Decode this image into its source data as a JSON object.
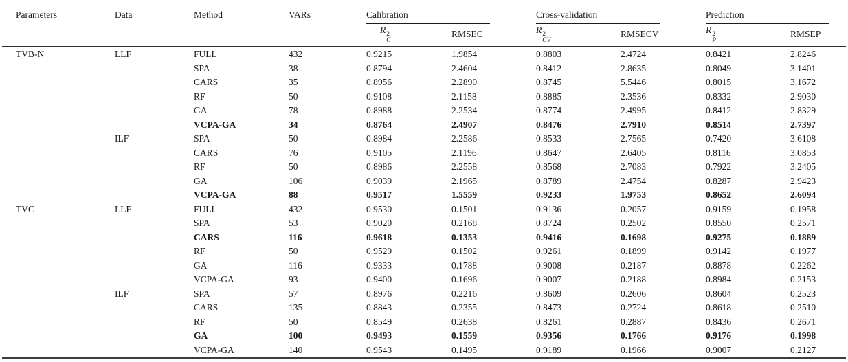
{
  "header": {
    "parameters": "Parameters",
    "data": "Data",
    "method": "Method",
    "vars": "VARs",
    "groups": [
      {
        "label": "Calibration",
        "r2_base": "R",
        "r2_sup": "2",
        "r2_sub": "C",
        "rmse": "RMSEC"
      },
      {
        "label": "Cross-validation",
        "r2_base": "R",
        "r2_sup": "2",
        "r2_sub": "CV",
        "rmse": "RMSECV"
      },
      {
        "label": "Prediction",
        "r2_base": "R",
        "r2_sup": "2",
        "r2_sub": "P",
        "rmse": "RMSEP"
      }
    ]
  },
  "rows": [
    {
      "parameters": "TVB-N",
      "data": "LLF",
      "method": "FULL",
      "vars": "432",
      "r2c": "0.9215",
      "rmsec": "1.9854",
      "r2cv": "0.8803",
      "rmsecv": "2.4724",
      "r2p": "0.8421",
      "rmsep": "2.8246",
      "bold": false
    },
    {
      "parameters": "",
      "data": "",
      "method": "SPA",
      "vars": "38",
      "r2c": "0.8794",
      "rmsec": "2.4604",
      "r2cv": "0.8412",
      "rmsecv": "2.8635",
      "r2p": "0.8049",
      "rmsep": "3.1401",
      "bold": false
    },
    {
      "parameters": "",
      "data": "",
      "method": "CARS",
      "vars": "35",
      "r2c": "0.8956",
      "rmsec": "2.2890",
      "r2cv": "0.8745",
      "rmsecv": "5.5446",
      "r2p": "0.8015",
      "rmsep": "3.1672",
      "bold": false
    },
    {
      "parameters": "",
      "data": "",
      "method": "RF",
      "vars": "50",
      "r2c": "0.9108",
      "rmsec": "2.1158",
      "r2cv": "0.8885",
      "rmsecv": "2.3536",
      "r2p": "0.8332",
      "rmsep": "2.9030",
      "bold": false
    },
    {
      "parameters": "",
      "data": "",
      "method": "GA",
      "vars": "78",
      "r2c": "0.8988",
      "rmsec": "2.2534",
      "r2cv": "0.8774",
      "rmsecv": "2.4995",
      "r2p": "0.8412",
      "rmsep": "2.8329",
      "bold": false
    },
    {
      "parameters": "",
      "data": "",
      "method": "VCPA-GA",
      "vars": "34",
      "r2c": "0.8764",
      "rmsec": "2.4907",
      "r2cv": "0.8476",
      "rmsecv": "2.7910",
      "r2p": "0.8514",
      "rmsep": "2.7397",
      "bold": true
    },
    {
      "parameters": "",
      "data": "ILF",
      "method": "SPA",
      "vars": "50",
      "r2c": "0.8984",
      "rmsec": "2.2586",
      "r2cv": "0.8533",
      "rmsecv": "2.7565",
      "r2p": "0.7420",
      "rmsep": "3.6108",
      "bold": false
    },
    {
      "parameters": "",
      "data": "",
      "method": "CARS",
      "vars": "76",
      "r2c": "0.9105",
      "rmsec": "2.1196",
      "r2cv": "0.8647",
      "rmsecv": "2.6405",
      "r2p": "0.8116",
      "rmsep": "3.0853",
      "bold": false
    },
    {
      "parameters": "",
      "data": "",
      "method": "RF",
      "vars": "50",
      "r2c": "0.8986",
      "rmsec": "2.2558",
      "r2cv": "0.8568",
      "rmsecv": "2.7083",
      "r2p": "0.7922",
      "rmsep": "3.2405",
      "bold": false
    },
    {
      "parameters": "",
      "data": "",
      "method": "GA",
      "vars": "106",
      "r2c": "0.9039",
      "rmsec": "2.1965",
      "r2cv": "0.8789",
      "rmsecv": "2.4754",
      "r2p": "0.8287",
      "rmsep": "2.9423",
      "bold": false
    },
    {
      "parameters": "",
      "data": "",
      "method": "VCPA-GA",
      "vars": "88",
      "r2c": "0.9517",
      "rmsec": "1.5559",
      "r2cv": "0.9233",
      "rmsecv": "1.9753",
      "r2p": "0.8652",
      "rmsep": "2.6094",
      "bold": true
    },
    {
      "parameters": "TVC",
      "data": "LLF",
      "method": "FULL",
      "vars": "432",
      "r2c": "0.9530",
      "rmsec": "0.1501",
      "r2cv": "0.9136",
      "rmsecv": "0.2057",
      "r2p": "0.9159",
      "rmsep": "0.1958",
      "bold": false
    },
    {
      "parameters": "",
      "data": "",
      "method": "SPA",
      "vars": "53",
      "r2c": "0.9020",
      "rmsec": "0.2168",
      "r2cv": "0.8724",
      "rmsecv": "0.2502",
      "r2p": "0.8550",
      "rmsep": "0.2571",
      "bold": false
    },
    {
      "parameters": "",
      "data": "",
      "method": "CARS",
      "vars": "116",
      "r2c": "0.9618",
      "rmsec": "0.1353",
      "r2cv": "0.9416",
      "rmsecv": "0.1698",
      "r2p": "0.9275",
      "rmsep": "0.1889",
      "bold": true
    },
    {
      "parameters": "",
      "data": "",
      "method": "RF",
      "vars": "50",
      "r2c": "0.9529",
      "rmsec": "0.1502",
      "r2cv": "0.9261",
      "rmsecv": "0.1899",
      "r2p": "0.9142",
      "rmsep": "0.1977",
      "bold": false
    },
    {
      "parameters": "",
      "data": "",
      "method": "GA",
      "vars": "116",
      "r2c": "0.9333",
      "rmsec": "0.1788",
      "r2cv": "0.9008",
      "rmsecv": "0.2187",
      "r2p": "0.8878",
      "rmsep": "0.2262",
      "bold": false
    },
    {
      "parameters": "",
      "data": "",
      "method": "VCPA-GA",
      "vars": "93",
      "r2c": "0.9400",
      "rmsec": "0.1696",
      "r2cv": "0.9007",
      "rmsecv": "0.2188",
      "r2p": "0.8984",
      "rmsep": "0.2153",
      "bold": false
    },
    {
      "parameters": "",
      "data": "ILF",
      "method": "SPA",
      "vars": "57",
      "r2c": "0.8976",
      "rmsec": "0.2216",
      "r2cv": "0.8609",
      "rmsecv": "0.2606",
      "r2p": "0.8604",
      "rmsep": "0.2523",
      "bold": false
    },
    {
      "parameters": "",
      "data": "",
      "method": "CARS",
      "vars": "135",
      "r2c": "0.8843",
      "rmsec": "0.2355",
      "r2cv": "0.8473",
      "rmsecv": "0.2724",
      "r2p": "0.8618",
      "rmsep": "0.2510",
      "bold": false
    },
    {
      "parameters": "",
      "data": "",
      "method": "RF",
      "vars": "50",
      "r2c": "0.8549",
      "rmsec": "0.2638",
      "r2cv": "0.8261",
      "rmsecv": "0.2887",
      "r2p": "0.8436",
      "rmsep": "0.2671",
      "bold": false
    },
    {
      "parameters": "",
      "data": "",
      "method": "GA",
      "vars": "100",
      "r2c": "0.9493",
      "rmsec": "0.1559",
      "r2cv": "0.9356",
      "rmsecv": "0.1766",
      "r2p": "0.9176",
      "rmsep": "0.1998",
      "bold": true
    },
    {
      "parameters": "",
      "data": "",
      "method": "VCPA-GA",
      "vars": "140",
      "r2c": "0.9543",
      "rmsec": "0.1495",
      "r2cv": "0.9189",
      "rmsecv": "0.1966",
      "r2p": "0.9007",
      "rmsep": "0.2127",
      "bold": false
    }
  ]
}
